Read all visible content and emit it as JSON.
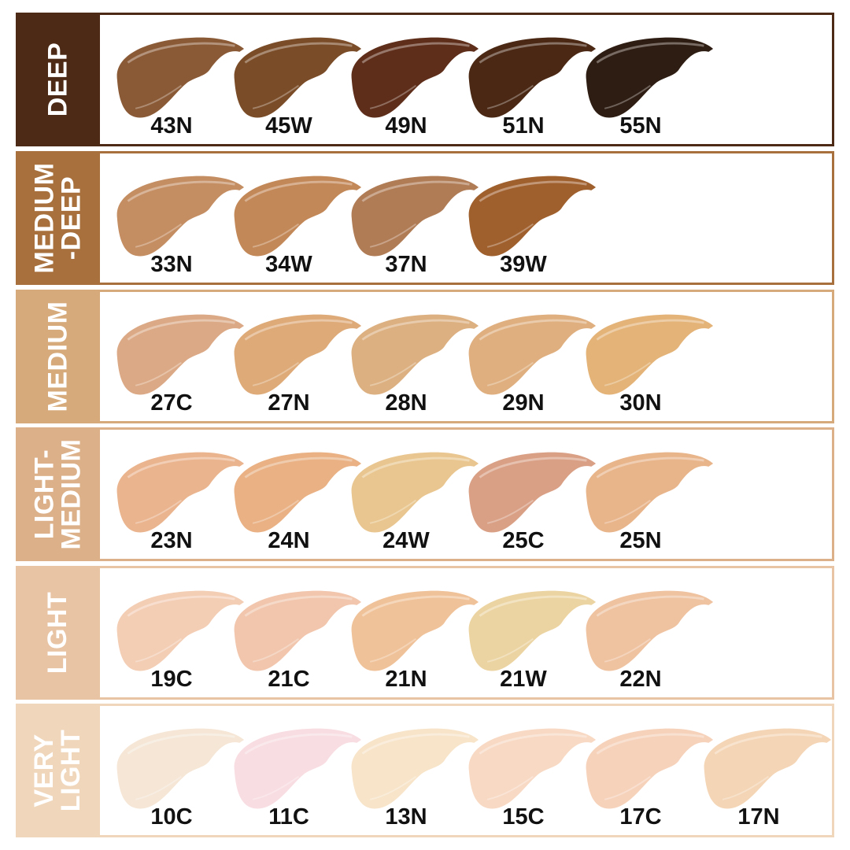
{
  "groups": [
    {
      "label": "DEEP",
      "color": "#4d2a15",
      "shades": [
        {
          "name": "43N",
          "color": "#8a5a36"
        },
        {
          "name": "45W",
          "color": "#7a4c28"
        },
        {
          "name": "49N",
          "color": "#5e2e1a"
        },
        {
          "name": "51N",
          "color": "#4a2814"
        },
        {
          "name": "55N",
          "color": "#2e1d12"
        }
      ]
    },
    {
      "label": "MEDIUM\n-DEEP",
      "color": "#a8703c",
      "shades": [
        {
          "name": "33N",
          "color": "#c48d62"
        },
        {
          "name": "34W",
          "color": "#c38858"
        },
        {
          "name": "37N",
          "color": "#b07c56"
        },
        {
          "name": "39W",
          "color": "#a0602e"
        }
      ]
    },
    {
      "label": "MEDIUM",
      "color": "#d6aa7a",
      "shades": [
        {
          "name": "27C",
          "color": "#dba985"
        },
        {
          "name": "27N",
          "color": "#ddaa78"
        },
        {
          "name": "28N",
          "color": "#dcb080"
        },
        {
          "name": "29N",
          "color": "#dfaf7f"
        },
        {
          "name": "30N",
          "color": "#e3b378"
        }
      ]
    },
    {
      "label": "LIGHT-\nMEDIUM",
      "color": "#dcb18a",
      "shades": [
        {
          "name": "23N",
          "color": "#eab48e"
        },
        {
          "name": "24N",
          "color": "#e9b184"
        },
        {
          "name": "24W",
          "color": "#e9c68f"
        },
        {
          "name": "25C",
          "color": "#d9a086"
        },
        {
          "name": "25N",
          "color": "#e8b48a"
        }
      ]
    },
    {
      "label": "LIGHT",
      "color": "#e9c4a4",
      "shades": [
        {
          "name": "19C",
          "color": "#f3cdb4"
        },
        {
          "name": "21C",
          "color": "#f1c6ad"
        },
        {
          "name": "21N",
          "color": "#f0c299"
        },
        {
          "name": "21W",
          "color": "#ecd4a2"
        },
        {
          "name": "22N",
          "color": "#efc2a0"
        }
      ]
    },
    {
      "label": "VERY\nLIGHT",
      "color": "#f0d7bc",
      "shades": [
        {
          "name": "10C",
          "color": "#f5e6d6"
        },
        {
          "name": "11C",
          "color": "#f8dde2"
        },
        {
          "name": "13N",
          "color": "#f7e4c9"
        },
        {
          "name": "15C",
          "color": "#f8d9c4"
        },
        {
          "name": "17C",
          "color": "#f6d2bb"
        },
        {
          "name": "17N",
          "color": "#f4d5b5"
        }
      ]
    }
  ]
}
